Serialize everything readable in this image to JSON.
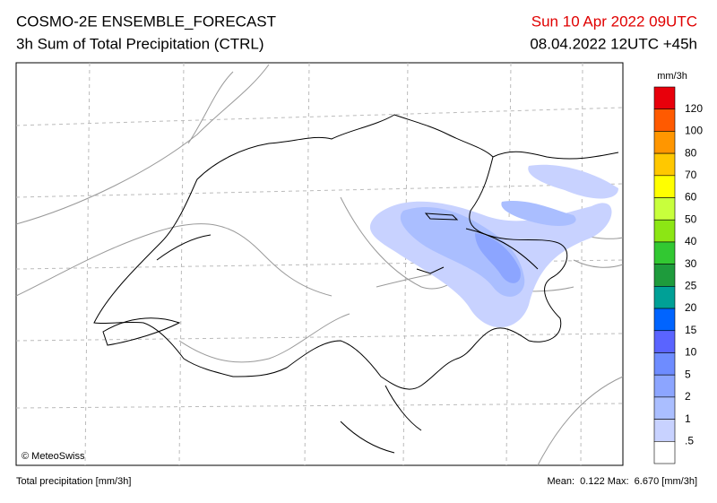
{
  "header": {
    "title": "COSMO-2E ENSEMBLE_FORECAST",
    "subtitle": "3h Sum of Total Precipitation (CTRL)",
    "valid_time": "Sun 10 Apr 2022 09UTC",
    "run": "08.04.2022 12UTC +45h"
  },
  "map": {
    "credit": "© MeteoSwiss"
  },
  "legend": {
    "unit": "mm/3h",
    "colors": [
      "#e8000b",
      "#ff5a00",
      "#ff9600",
      "#ffc800",
      "#ffff00",
      "#c8ff3c",
      "#8ce614",
      "#32c832",
      "#1e9b3c",
      "#00a096",
      "#0064ff",
      "#5a64ff",
      "#6e8cff",
      "#8ca5ff",
      "#aabeff",
      "#c8d2ff",
      "#ffffff"
    ],
    "labels": [
      "120",
      "100",
      "80",
      "70",
      "60",
      "50",
      "40",
      "30",
      "25",
      "20",
      "15",
      "10",
      "5",
      "2",
      "1",
      ".5"
    ]
  },
  "footer": {
    "left": "Total precipitation [mm/3h]",
    "right": "Mean:  0.122 Max:  6.670 [mm/3h]"
  }
}
